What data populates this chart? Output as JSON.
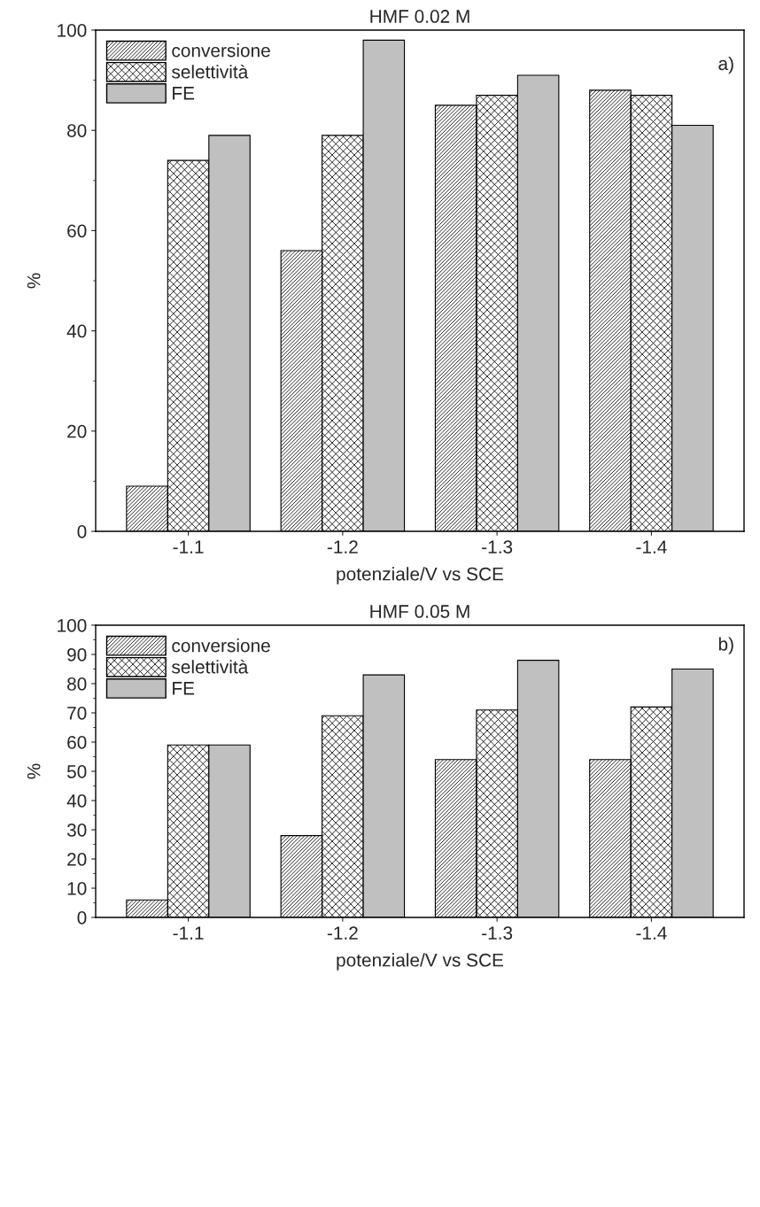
{
  "chart_data": [
    {
      "type": "bar",
      "title": "HMF 0.02 M",
      "xlabel": "potenziale/V vs SCE",
      "ylabel": "%",
      "categories": [
        "-1.1",
        "-1.2",
        "-1.3",
        "-1.4"
      ],
      "series": [
        {
          "name": "conversione",
          "color": "#000000",
          "values": [
            9,
            56,
            85,
            88
          ]
        },
        {
          "name": "selettività",
          "color": "#000000",
          "values": [
            74,
            79,
            87,
            87
          ]
        },
        {
          "name": "FE",
          "color": "#c0c0c0",
          "values": [
            79,
            98,
            91,
            81
          ]
        }
      ],
      "ylim": [
        0,
        100
      ],
      "yticks": [
        0,
        20,
        40,
        60,
        80,
        100
      ],
      "legend": "top left",
      "grid": false,
      "annotations": [
        "a)"
      ]
    },
    {
      "type": "bar",
      "title": "HMF 0.05 M",
      "xlabel": "potenziale/V vs SCE",
      "ylabel": "%",
      "categories": [
        "-1.1",
        "-1.2",
        "-1.3",
        "-1.4"
      ],
      "series": [
        {
          "name": "conversione",
          "color": "#000000",
          "values": [
            6,
            28,
            54,
            54
          ]
        },
        {
          "name": "selettività",
          "color": "#000000",
          "values": [
            59,
            69,
            71,
            72
          ]
        },
        {
          "name": "FE",
          "color": "#c0c0c0",
          "values": [
            59,
            83,
            88,
            85
          ]
        }
      ],
      "ylim": [
        0,
        100
      ],
      "yticks": [
        0,
        10,
        20,
        30,
        40,
        50,
        60,
        70,
        80,
        90,
        100
      ],
      "legend": "top left",
      "grid": false,
      "annotations": [
        "b)"
      ]
    }
  ]
}
